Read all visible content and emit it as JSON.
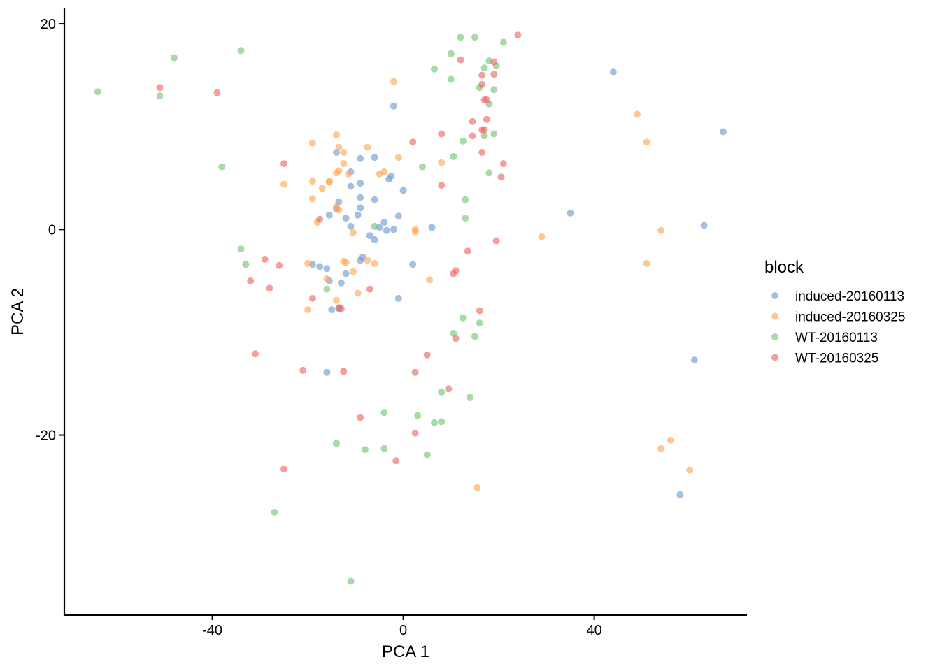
{
  "chart_data": {
    "type": "scatter",
    "xlabel": "PCA 1",
    "ylabel": "PCA 2",
    "xlim": [
      -71,
      72
    ],
    "ylim": [
      -37.5,
      21.5
    ],
    "xticks": [
      -40,
      0,
      40
    ],
    "yticks": [
      -20,
      0,
      20
    ],
    "grid": false,
    "legend": {
      "title": "block",
      "position": "right"
    },
    "series": [
      {
        "name": "induced-20160113",
        "color": "#6a9ad0",
        "points": [
          [
            -2,
            12
          ],
          [
            44,
            15.3
          ],
          [
            67,
            9.5
          ],
          [
            -14,
            7.5
          ],
          [
            -6,
            7
          ],
          [
            -9,
            6.9
          ],
          [
            -11,
            5.6
          ],
          [
            -2.5,
            5.2
          ],
          [
            -3,
            4.9
          ],
          [
            -9,
            4.5
          ],
          [
            0,
            3.8
          ],
          [
            -11,
            4.2
          ],
          [
            -13.5,
            2.7
          ],
          [
            -6,
            2.9
          ],
          [
            -9,
            3.1
          ],
          [
            -9,
            2.1
          ],
          [
            -14,
            2
          ],
          [
            -15.5,
            1.4
          ],
          [
            -12,
            1.1
          ],
          [
            -9.5,
            1.4
          ],
          [
            -1,
            1.3
          ],
          [
            -11,
            0.3
          ],
          [
            -5,
            0.2
          ],
          [
            -4,
            0.7
          ],
          [
            -3.5,
            -0.1
          ],
          [
            -2,
            0
          ],
          [
            6,
            0.2
          ],
          [
            35,
            1.6
          ],
          [
            63,
            0.4
          ],
          [
            -7,
            -0.6
          ],
          [
            -6,
            -1
          ],
          [
            -19,
            -3.4
          ],
          [
            -17.5,
            -3.6
          ],
          [
            -16,
            -3.8
          ],
          [
            -9,
            -3
          ],
          [
            -8.5,
            -2.7
          ],
          [
            2,
            -3.4
          ],
          [
            -12,
            -4.3
          ],
          [
            -15.5,
            -5
          ],
          [
            -13,
            -5.2
          ],
          [
            -1,
            -6.7
          ],
          [
            -15,
            -7.8
          ],
          [
            -13.5,
            -7.7
          ],
          [
            -16,
            -13.9
          ],
          [
            61,
            -12.7
          ],
          [
            58,
            -25.8
          ]
        ]
      },
      {
        "name": "induced-20160325",
        "color": "#ffa44f",
        "points": [
          [
            -2,
            14.4
          ],
          [
            49,
            11.2
          ],
          [
            51,
            8.5
          ],
          [
            -14,
            9.2
          ],
          [
            -19,
            8.4
          ],
          [
            -13.5,
            8
          ],
          [
            -12.5,
            7.5
          ],
          [
            -7.5,
            8
          ],
          [
            -1,
            7
          ],
          [
            -12.5,
            6.4
          ],
          [
            8,
            6.5
          ],
          [
            -13.5,
            5.7
          ],
          [
            -14,
            5.5
          ],
          [
            -11.5,
            5.4
          ],
          [
            -4,
            5.6
          ],
          [
            -5,
            5.4
          ],
          [
            -19,
            4.7
          ],
          [
            -15.5,
            4.7
          ],
          [
            -15.5,
            4.6
          ],
          [
            -17,
            4
          ],
          [
            -25,
            4.4
          ],
          [
            -19,
            3
          ],
          [
            -14,
            2.2
          ],
          [
            -13.5,
            1.9
          ],
          [
            -18,
            0.7
          ],
          [
            -10.5,
            -0.3
          ],
          [
            2.5,
            0
          ],
          [
            2.5,
            -0.2
          ],
          [
            29,
            -0.7
          ],
          [
            54,
            -0.1
          ],
          [
            -20,
            -3.3
          ],
          [
            -12.5,
            -3.1
          ],
          [
            -12,
            -3.2
          ],
          [
            -7.5,
            -3
          ],
          [
            -6,
            -3.3
          ],
          [
            -10.5,
            -4.1
          ],
          [
            51,
            -3.3
          ],
          [
            -16,
            -4.8
          ],
          [
            5.5,
            -4.9
          ],
          [
            -14,
            -6.9
          ],
          [
            -9.5,
            -6.2
          ],
          [
            -20,
            -7.8
          ],
          [
            54,
            -21.3
          ],
          [
            56,
            -20.5
          ],
          [
            60,
            -23.4
          ],
          [
            15.5,
            -25.1
          ]
        ]
      },
      {
        "name": "WT-20160113",
        "color": "#6fc46f",
        "points": [
          [
            -64,
            13.4
          ],
          [
            -48,
            16.7
          ],
          [
            -51,
            13
          ],
          [
            -34,
            17.4
          ],
          [
            12,
            18.7
          ],
          [
            15,
            18.7
          ],
          [
            21,
            18.2
          ],
          [
            10,
            17.1
          ],
          [
            18,
            16.4
          ],
          [
            6.5,
            15.6
          ],
          [
            17,
            15.7
          ],
          [
            19.5,
            15.9
          ],
          [
            10,
            14.6
          ],
          [
            16,
            13.8
          ],
          [
            19,
            13.6
          ],
          [
            18,
            12.2
          ],
          [
            12.5,
            8.6
          ],
          [
            17,
            9.1
          ],
          [
            19,
            9.3
          ],
          [
            10.5,
            7.1
          ],
          [
            -38,
            6.1
          ],
          [
            4,
            6.1
          ],
          [
            18,
            5.5
          ],
          [
            13,
            2.9
          ],
          [
            13,
            1.1
          ],
          [
            -34,
            -1.9
          ],
          [
            -33,
            -3.4
          ],
          [
            -6,
            0.3
          ],
          [
            -16,
            -5.8
          ],
          [
            12.5,
            -8.6
          ],
          [
            16,
            -9.1
          ],
          [
            10.5,
            -10.1
          ],
          [
            15,
            -10.4
          ],
          [
            8,
            -15.8
          ],
          [
            14,
            -16.3
          ],
          [
            -4,
            -17.8
          ],
          [
            3,
            -18.1
          ],
          [
            6.5,
            -18.8
          ],
          [
            8,
            -18.7
          ],
          [
            -14,
            -20.8
          ],
          [
            -8,
            -21.4
          ],
          [
            -4,
            -21.3
          ],
          [
            5,
            -21.9
          ],
          [
            -27,
            -27.5
          ],
          [
            -11,
            -34.2
          ]
        ]
      },
      {
        "name": "WT-20160325",
        "color": "#ec6463",
        "points": [
          [
            24,
            18.9
          ],
          [
            12,
            16.5
          ],
          [
            19,
            16.3
          ],
          [
            16.5,
            15
          ],
          [
            19,
            15.1
          ],
          [
            -51,
            13.8
          ],
          [
            -39,
            13.3
          ],
          [
            16.5,
            14.1
          ],
          [
            17,
            12.6
          ],
          [
            17.5,
            12.6
          ],
          [
            14.5,
            10.5
          ],
          [
            17.5,
            10.7
          ],
          [
            16.5,
            9.7
          ],
          [
            17,
            9.7
          ],
          [
            8,
            9.3
          ],
          [
            14.5,
            9.1
          ],
          [
            2,
            8.5
          ],
          [
            -25,
            6.4
          ],
          [
            16.5,
            7.5
          ],
          [
            21,
            6.4
          ],
          [
            20.5,
            5.1
          ],
          [
            8,
            4.3
          ],
          [
            -17.5,
            1
          ],
          [
            -29,
            -2.9
          ],
          [
            -26,
            -3.5
          ],
          [
            13.5,
            -2.1
          ],
          [
            19.5,
            -1.1
          ],
          [
            11,
            -4
          ],
          [
            10.5,
            -4.3
          ],
          [
            -32,
            -5
          ],
          [
            -28,
            -5.7
          ],
          [
            -19,
            -6.7
          ],
          [
            -7,
            -5.8
          ],
          [
            -13.5,
            -7.6
          ],
          [
            -13,
            -7.7
          ],
          [
            16,
            -7.9
          ],
          [
            11,
            -10.6
          ],
          [
            -31,
            -12.1
          ],
          [
            5,
            -12.2
          ],
          [
            -21,
            -13.7
          ],
          [
            -12.5,
            -13.8
          ],
          [
            2.5,
            -13.9
          ],
          [
            9.5,
            -15.5
          ],
          [
            -9,
            -18.3
          ],
          [
            2.5,
            -19.8
          ],
          [
            -1.5,
            -22.5
          ],
          [
            -25,
            -23.3
          ]
        ]
      }
    ]
  }
}
